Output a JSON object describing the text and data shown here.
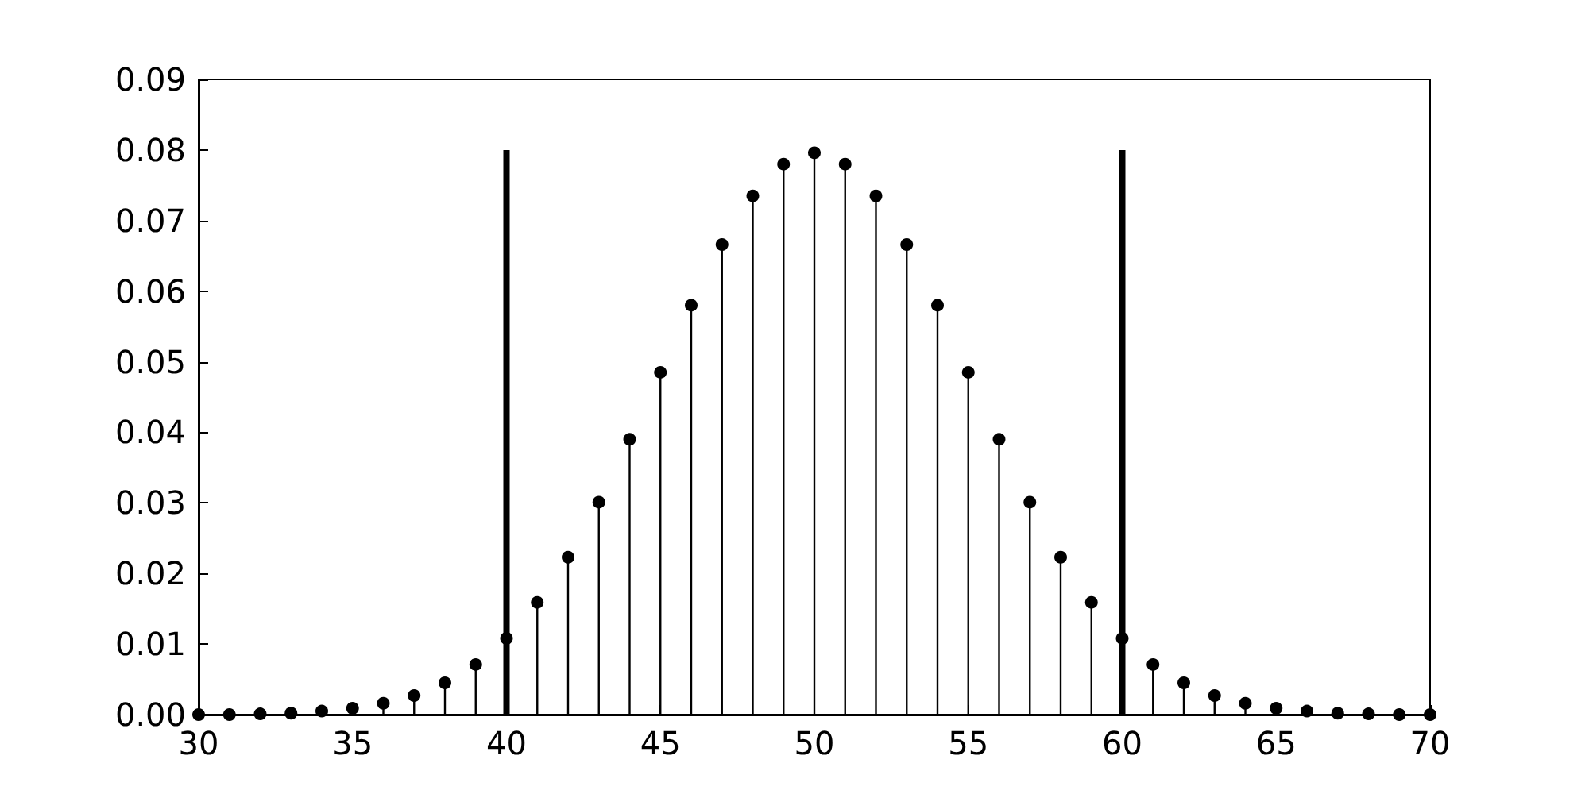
{
  "chart_data": {
    "type": "lollipop",
    "marker": "circle",
    "xlim": [
      30,
      70
    ],
    "xticks": [
      30,
      35,
      40,
      45,
      50,
      55,
      60,
      65,
      70
    ],
    "ylim": [
      0,
      0.09
    ],
    "yticks": [
      {
        "value": 0,
        "label": "0.00"
      },
      {
        "value": 0.01,
        "label": "0.01"
      },
      {
        "value": 0.02,
        "label": "0.02"
      },
      {
        "value": 0.03,
        "label": "0.03"
      },
      {
        "value": 0.04,
        "label": "0.04"
      },
      {
        "value": 0.05,
        "label": "0.05"
      },
      {
        "value": 0.06,
        "label": "0.06"
      },
      {
        "value": 0.07,
        "label": "0.07"
      },
      {
        "value": 0.08,
        "label": "0.08"
      },
      {
        "value": 0.09,
        "label": "0.09"
      }
    ],
    "series": [
      {
        "color": "#000000",
        "x": [
          30,
          31,
          32,
          33,
          34,
          35,
          36,
          37,
          38,
          39,
          40,
          41,
          42,
          43,
          44,
          45,
          46,
          47,
          48,
          49,
          50,
          51,
          52,
          53,
          54,
          55,
          56,
          57,
          58,
          59,
          60,
          61,
          62,
          63,
          64,
          65,
          66,
          67,
          68,
          69,
          70
        ],
        "values": [
          0,
          0,
          0.0001,
          0.0002,
          0.0005,
          0.0009,
          0.0016,
          0.0027,
          0.0045,
          0.0071,
          0.0108,
          0.0159,
          0.0223,
          0.0301,
          0.039,
          0.0485,
          0.058,
          0.0666,
          0.0735,
          0.078,
          0.0796,
          0.078,
          0.0735,
          0.0666,
          0.058,
          0.0485,
          0.039,
          0.0301,
          0.0223,
          0.0159,
          0.0108,
          0.0071,
          0.0045,
          0.0027,
          0.0016,
          0.0009,
          0.0005,
          0.0002,
          0.0001,
          0,
          0
        ]
      },
      {
        "type": "bar",
        "color": "#000000",
        "x": [
          40,
          60
        ],
        "values": [
          0.08,
          0.08
        ]
      }
    ]
  }
}
